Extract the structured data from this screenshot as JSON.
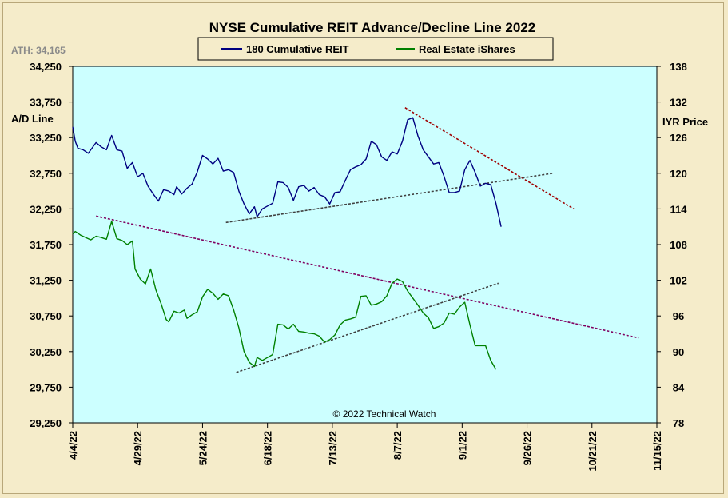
{
  "chart_data": {
    "type": "line",
    "title": "NYSE Cumulative  REIT Advance/Decline Line 2022",
    "ath_label": "ATH: 34,165",
    "credit": "© 2022 Technical  Watch",
    "left_axis": {
      "label": "A/D Line",
      "ticks": [
        "34,250",
        "33,750",
        "33,250",
        "32,750",
        "32,250",
        "31,750",
        "31,250",
        "30,750",
        "30,250",
        "29,750",
        "29,250"
      ],
      "range": [
        29250,
        34250
      ]
    },
    "right_axis": {
      "label": "IYR Price",
      "ticks": [
        "138",
        "132",
        "126",
        "120",
        "114",
        "108",
        "102",
        "96",
        "90",
        "84",
        "78"
      ],
      "range": [
        78,
        138
      ]
    },
    "x_axis": {
      "tick_labels": [
        "4/4/22",
        "4/29/22",
        "5/24/22",
        "6/18/22",
        "7/13/22",
        "8/7/22",
        "9/1/22",
        "9/26/22",
        "10/21/22",
        "11/15/22"
      ],
      "range_days": [
        0,
        225
      ]
    },
    "legend_placement": "top-center",
    "colors": {
      "plot_background": "#ccffff",
      "ad_line": "#000080",
      "iyr_line": "#008000",
      "trend_purple": "#800060",
      "trend_red": "#a00000",
      "trend_gray": "#404040"
    },
    "series": [
      {
        "name": "180 Cumulative REIT",
        "axis": "left",
        "points": [
          [
            0,
            33400
          ],
          [
            1,
            33200
          ],
          [
            2,
            33100
          ],
          [
            4,
            33080
          ],
          [
            6,
            33030
          ],
          [
            7,
            33080
          ],
          [
            9,
            33180
          ],
          [
            11,
            33120
          ],
          [
            13,
            33080
          ],
          [
            15,
            33280
          ],
          [
            17,
            33080
          ],
          [
            19,
            33060
          ],
          [
            21,
            32820
          ],
          [
            23,
            32900
          ],
          [
            25,
            32700
          ],
          [
            27,
            32750
          ],
          [
            29,
            32570
          ],
          [
            31,
            32460
          ],
          [
            33,
            32360
          ],
          [
            35,
            32520
          ],
          [
            37,
            32500
          ],
          [
            39,
            32450
          ],
          [
            40,
            32560
          ],
          [
            42,
            32460
          ],
          [
            44,
            32540
          ],
          [
            46,
            32600
          ],
          [
            48,
            32770
          ],
          [
            50,
            33000
          ],
          [
            52,
            32950
          ],
          [
            54,
            32880
          ],
          [
            56,
            32960
          ],
          [
            58,
            32780
          ],
          [
            60,
            32800
          ],
          [
            62,
            32760
          ],
          [
            64,
            32500
          ],
          [
            66,
            32320
          ],
          [
            68,
            32180
          ],
          [
            70,
            32280
          ],
          [
            71,
            32140
          ],
          [
            73,
            32250
          ],
          [
            75,
            32290
          ],
          [
            77,
            32330
          ],
          [
            79,
            32630
          ],
          [
            81,
            32620
          ],
          [
            83,
            32550
          ],
          [
            85,
            32370
          ],
          [
            87,
            32560
          ],
          [
            89,
            32580
          ],
          [
            91,
            32500
          ],
          [
            93,
            32550
          ],
          [
            95,
            32450
          ],
          [
            97,
            32420
          ],
          [
            99,
            32320
          ],
          [
            101,
            32480
          ],
          [
            103,
            32490
          ],
          [
            105,
            32650
          ],
          [
            107,
            32800
          ],
          [
            109,
            32840
          ],
          [
            111,
            32870
          ],
          [
            113,
            32950
          ],
          [
            115,
            33200
          ],
          [
            117,
            33150
          ],
          [
            119,
            32980
          ],
          [
            121,
            32930
          ],
          [
            123,
            33050
          ],
          [
            125,
            33020
          ],
          [
            127,
            33200
          ],
          [
            129,
            33500
          ],
          [
            131,
            33530
          ],
          [
            133,
            33270
          ],
          [
            135,
            33080
          ],
          [
            137,
            32980
          ],
          [
            139,
            32880
          ],
          [
            141,
            32900
          ],
          [
            143,
            32710
          ],
          [
            145,
            32480
          ],
          [
            147,
            32480
          ],
          [
            149,
            32500
          ],
          [
            151,
            32800
          ],
          [
            153,
            32930
          ],
          [
            155,
            32760
          ],
          [
            157,
            32570
          ],
          [
            159,
            32610
          ],
          [
            161,
            32590
          ],
          [
            163,
            32330
          ],
          [
            165,
            32000
          ]
        ]
      },
      {
        "name": "Real Estate iShares",
        "axis": "right",
        "points": [
          [
            0,
            109.8
          ],
          [
            1,
            110.2
          ],
          [
            3,
            109.6
          ],
          [
            5,
            109.2
          ],
          [
            7,
            108.8
          ],
          [
            9,
            109.4
          ],
          [
            11,
            109.2
          ],
          [
            13,
            108.9
          ],
          [
            15,
            111.9
          ],
          [
            17,
            109.0
          ],
          [
            19,
            108.7
          ],
          [
            21,
            108.0
          ],
          [
            23,
            108.6
          ],
          [
            24,
            103.9
          ],
          [
            26,
            102.2
          ],
          [
            28,
            101.4
          ],
          [
            30,
            103.9
          ],
          [
            32,
            100.4
          ],
          [
            34,
            98.1
          ],
          [
            36,
            95.4
          ],
          [
            37,
            95.0
          ],
          [
            39,
            96.8
          ],
          [
            41,
            96.5
          ],
          [
            43,
            97.0
          ],
          [
            44,
            95.6
          ],
          [
            46,
            96.2
          ],
          [
            48,
            96.7
          ],
          [
            50,
            99.2
          ],
          [
            52,
            100.5
          ],
          [
            54,
            99.8
          ],
          [
            56,
            98.8
          ],
          [
            58,
            99.7
          ],
          [
            60,
            99.4
          ],
          [
            62,
            97.0
          ],
          [
            64,
            94.0
          ],
          [
            66,
            90.0
          ],
          [
            68,
            88.2
          ],
          [
            70,
            87.5
          ],
          [
            71,
            89.0
          ],
          [
            73,
            88.5
          ],
          [
            75,
            89.0
          ],
          [
            77,
            89.5
          ],
          [
            79,
            94.6
          ],
          [
            81,
            94.5
          ],
          [
            83,
            93.8
          ],
          [
            85,
            94.6
          ],
          [
            87,
            93.4
          ],
          [
            89,
            93.3
          ],
          [
            91,
            93.1
          ],
          [
            93,
            93.0
          ],
          [
            95,
            92.6
          ],
          [
            97,
            91.6
          ],
          [
            99,
            92.0
          ],
          [
            101,
            92.8
          ],
          [
            103,
            94.5
          ],
          [
            105,
            95.3
          ],
          [
            107,
            95.5
          ],
          [
            109,
            95.8
          ],
          [
            111,
            99.3
          ],
          [
            113,
            99.4
          ],
          [
            115,
            97.8
          ],
          [
            117,
            98.0
          ],
          [
            119,
            98.4
          ],
          [
            121,
            99.4
          ],
          [
            123,
            101.5
          ],
          [
            125,
            102.2
          ],
          [
            127,
            101.8
          ],
          [
            129,
            100.2
          ],
          [
            131,
            99.0
          ],
          [
            133,
            97.8
          ],
          [
            135,
            96.5
          ],
          [
            137,
            95.7
          ],
          [
            139,
            93.9
          ],
          [
            141,
            94.2
          ],
          [
            143,
            94.8
          ],
          [
            145,
            96.5
          ],
          [
            147,
            96.3
          ],
          [
            149,
            97.5
          ],
          [
            151,
            98.3
          ],
          [
            153,
            94.5
          ],
          [
            155,
            91.0
          ],
          [
            157,
            91.0
          ],
          [
            159,
            91.0
          ],
          [
            161,
            88.5
          ],
          [
            163,
            87.0
          ]
        ]
      }
    ],
    "trend_lines": [
      {
        "name": "ad-upper-downtrend",
        "color": "trend_red",
        "axis": "left",
        "from": [
          128,
          33670
        ],
        "to": [
          193,
          32250
        ]
      },
      {
        "name": "ad-support-uptrend",
        "color": "trend_gray",
        "axis": "left",
        "from": [
          59,
          32060
        ],
        "to": [
          185,
          32750
        ]
      },
      {
        "name": "iyr-long-downtrend",
        "color": "trend_purple",
        "axis": "right",
        "from": [
          9,
          112.8
        ],
        "to": [
          218,
          92.3
        ]
      },
      {
        "name": "iyr-support-uptrend",
        "color": "trend_gray",
        "axis": "right",
        "from": [
          63,
          86.5
        ],
        "to": [
          164,
          101.5
        ]
      }
    ]
  }
}
